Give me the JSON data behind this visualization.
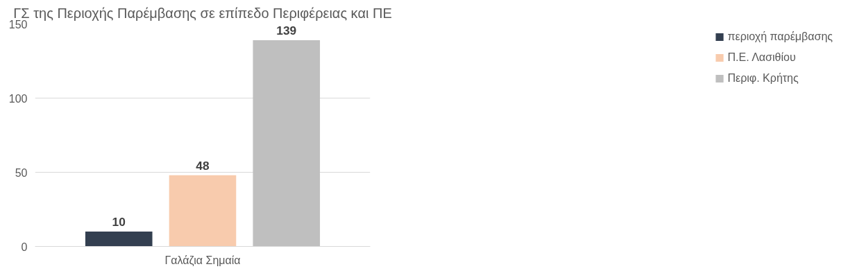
{
  "chart_data": {
    "type": "bar",
    "title": "ΓΣ της Περιοχής Παρέμβασης σε επίπεδο Περιφέρειας και ΠΕ",
    "categories": [
      "Γαλάζια Σημαία"
    ],
    "series": [
      {
        "name": "περιοχή παρέμβασης",
        "color": "#333f50",
        "values": [
          10
        ]
      },
      {
        "name": "Π.Ε. Λασιθίου",
        "color": "#f8cbad",
        "values": [
          48
        ]
      },
      {
        "name": "Περιφ. Κρήτης",
        "color": "#bfbfbf",
        "values": [
          139
        ]
      }
    ],
    "ylim": [
      0,
      150
    ],
    "yticks": [
      0,
      50,
      100,
      150
    ],
    "grid": "y",
    "legend": "right",
    "data_labels": true
  }
}
